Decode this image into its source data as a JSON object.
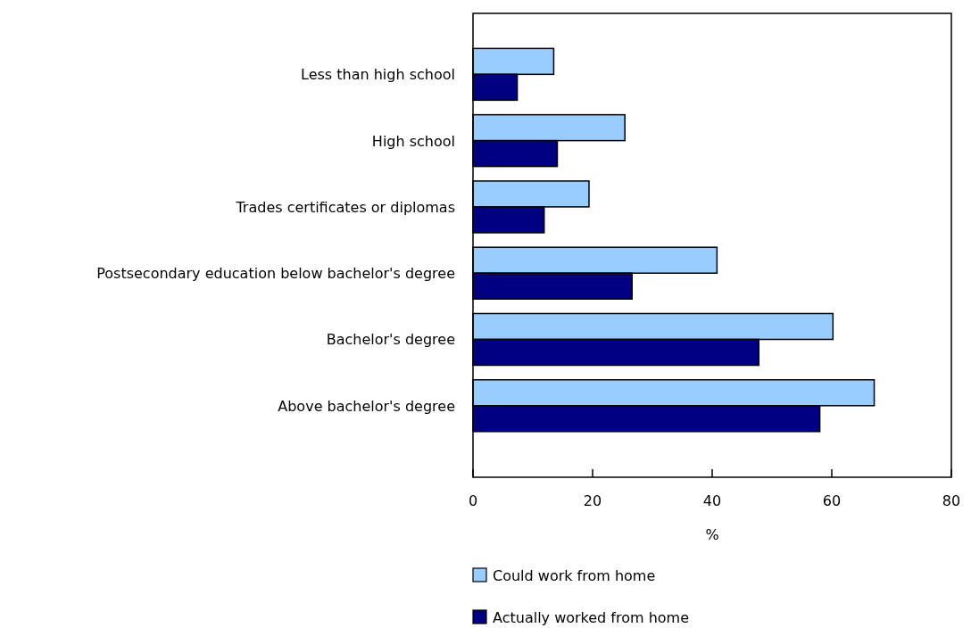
{
  "chart_data": {
    "type": "bar",
    "orientation": "horizontal",
    "xlabel": "%",
    "categories": [
      "Less than high school",
      "High school",
      "Trades certificates or diplomas",
      "Postsecondary education below bachelor's degree",
      "Bachelor's degree",
      "Above bachelor's degree"
    ],
    "series": [
      {
        "name": "Could work from home",
        "color": "#99ccff",
        "values": [
          13.5,
          25.4,
          19.4,
          40.8,
          60.2,
          67.1
        ]
      },
      {
        "name": "Actually worked from home",
        "color": "#000080",
        "values": [
          7.4,
          14.1,
          11.9,
          26.6,
          47.8,
          58.0
        ]
      }
    ],
    "xlim": [
      0,
      80
    ],
    "xticks": [
      0,
      20,
      40,
      60,
      80
    ],
    "grid": false,
    "legend": "bottom"
  }
}
